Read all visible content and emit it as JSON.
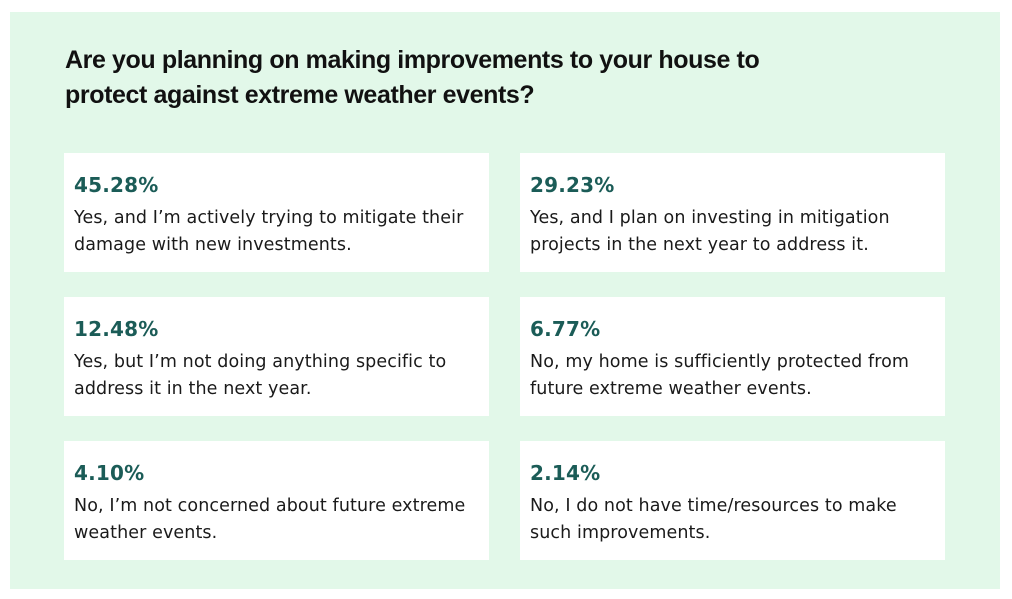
{
  "chart_data": {
    "type": "table",
    "title": "Are you planning on making improvements to your house to protect against extreme weather events?",
    "items": [
      {
        "value": "45.28%",
        "label": "Yes, and I’m actively trying to mitigate their damage with new investments."
      },
      {
        "value": "29.23%",
        "label": "Yes, and I plan on investing in mitigation projects in the next year to address it."
      },
      {
        "value": "12.48%",
        "label": "Yes, but I’m not doing anything specific to address it in the next year."
      },
      {
        "value": "6.77%",
        "label": "No, my home is sufficiently protected from future extreme weather events."
      },
      {
        "value": "4.10%",
        "label": "No, I’m not concerned about future extreme weather events."
      },
      {
        "value": "2.14%",
        "label": "No, I do not have time/resources to make such improvements."
      }
    ]
  },
  "colors": {
    "background": "#e2f8e9",
    "card": "#ffffff",
    "percent": "#1b5c57",
    "text": "#1a1a1a"
  }
}
